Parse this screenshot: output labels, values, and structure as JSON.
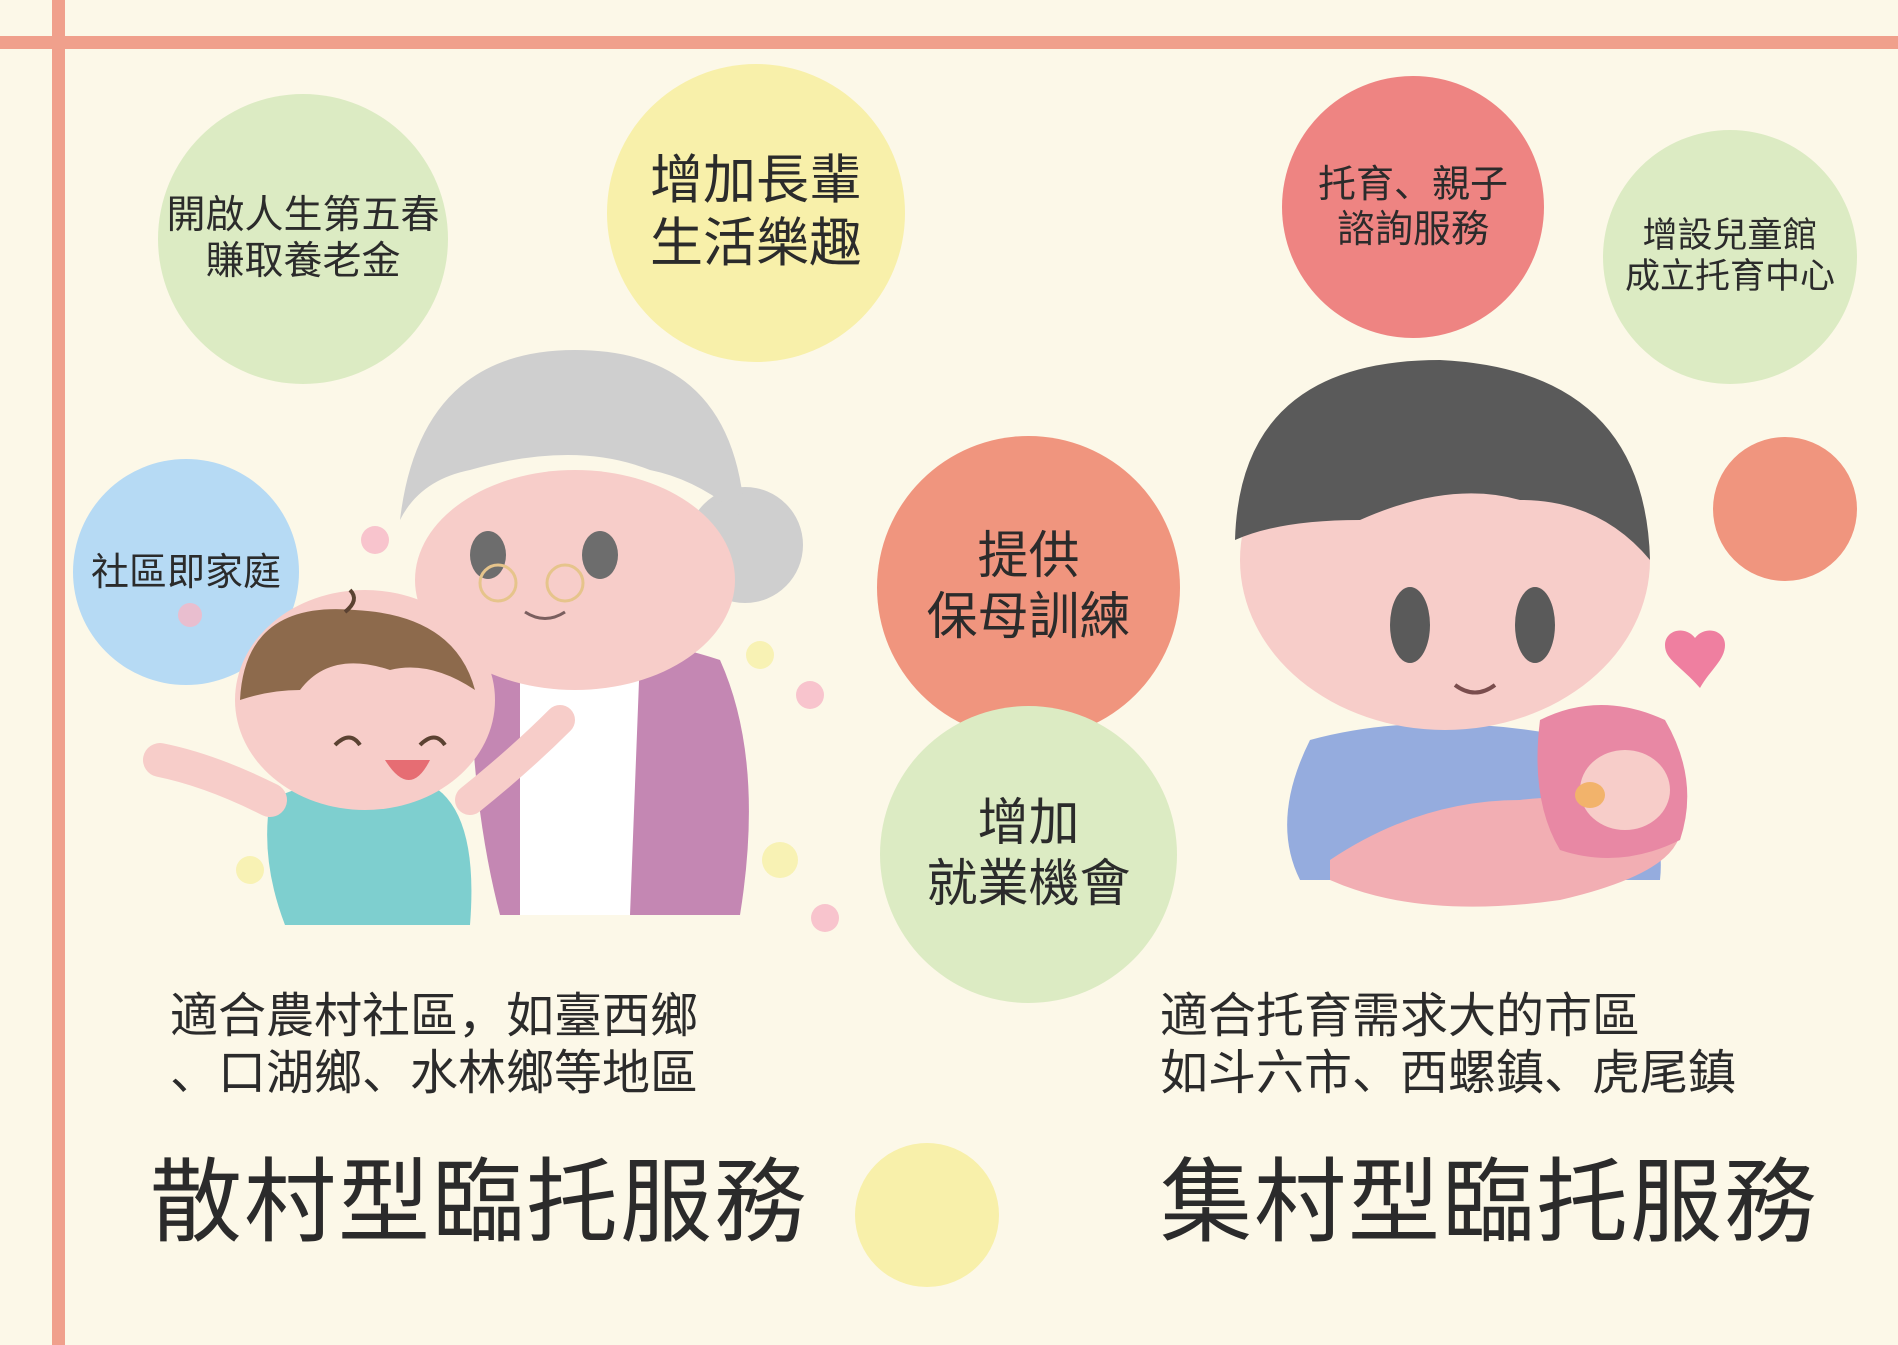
{
  "colors": {
    "background": "#fcf8e8",
    "frame_line": "#f0a08c",
    "green": "#dcebc3",
    "yellow": "#f8f0aa",
    "blue": "#b6daf4",
    "red": "#ee8482",
    "salmon": "#f0957e"
  },
  "left": {
    "bubbles": {
      "fifth_spring": "開啟人生第五春\n賺取養老金",
      "elder_fun": "增加長輩\n生活樂趣",
      "community_home": "社區即家庭"
    },
    "caption": "適合農村社區，如臺西鄉\n、口湖鄉、水林鄉等地區",
    "title": "散村型臨托服務"
  },
  "center": {
    "bubbles": {
      "nanny_training": "提供\n保母訓練",
      "employment": "增加\n就業機會"
    }
  },
  "right": {
    "bubbles": {
      "parenting": "托育、親子\n諮詢服務",
      "childrens_center": "增設兒童館\n成立托育中心"
    },
    "caption": "適合托育需求大的市區\n如斗六市、西螺鎮、虎尾鎮",
    "title": "集村型臨托服務"
  },
  "illustrations": {
    "left_icon": "grandmother-and-child-illustration",
    "right_icon": "father-holding-baby-illustration",
    "heart_icon": "heart-icon"
  }
}
